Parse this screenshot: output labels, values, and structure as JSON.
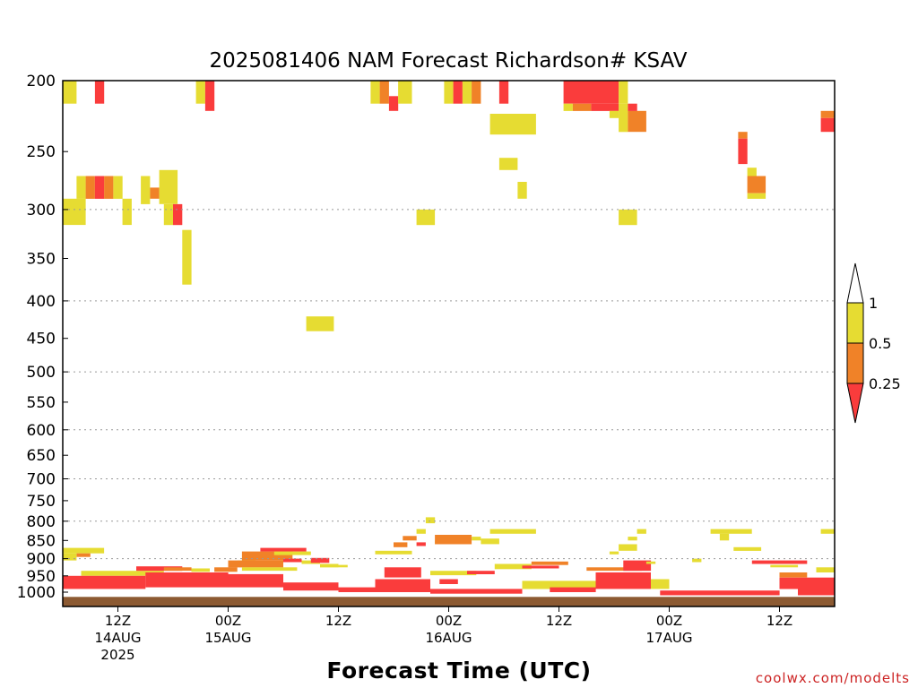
{
  "chart_data": {
    "type": "heatmap",
    "title": "2025081406 NAM Forecast Richardson# KSAV",
    "xlabel": "Forecast Time (UTC)",
    "ylabel": "",
    "credit": "coolwx.com/modelts",
    "x_unit": "hours after 2025-08-14 06Z",
    "xlim": [
      0,
      84
    ],
    "y_scale": "log-pressure",
    "ylim": [
      1000,
      200
    ],
    "y_ticks": [
      200,
      250,
      300,
      350,
      400,
      450,
      500,
      550,
      600,
      650,
      700,
      750,
      800,
      850,
      900,
      950,
      1000
    ],
    "grid_levels": [
      300,
      400,
      500,
      600,
      700,
      800,
      900
    ],
    "x_ticks": [
      {
        "hour": 6,
        "lines": [
          "12Z",
          "14AUG",
          "2025"
        ]
      },
      {
        "hour": 18,
        "lines": [
          "00Z",
          "15AUG"
        ]
      },
      {
        "hour": 30,
        "lines": [
          "12Z"
        ]
      },
      {
        "hour": 42,
        "lines": [
          "00Z",
          "16AUG"
        ]
      },
      {
        "hour": 54,
        "lines": [
          "12Z"
        ]
      },
      {
        "hour": 66,
        "lines": [
          "00Z",
          "17AUG"
        ]
      },
      {
        "hour": 78,
        "lines": [
          "12Z"
        ]
      }
    ],
    "legend": {
      "labels": [
        "1",
        "0.5",
        "0.25"
      ],
      "bins": [
        {
          "range": "> 1",
          "color": "#ffffff"
        },
        {
          "range": "0.5 - 1",
          "color": "#e6dc32"
        },
        {
          "range": "0.25 - 0.5",
          "color": "#f08228"
        },
        {
          "range": "< 0.25",
          "color": "#fa3c3c"
        }
      ]
    },
    "colors": {
      "yellow": "#e6dc32",
      "orange": "#f08228",
      "red": "#fa3c3c",
      "ground": "#8c5a32"
    },
    "ground_level": 1015,
    "cells": [
      {
        "t0": 0,
        "t1": 1.5,
        "p0": 200,
        "p1": 215,
        "c": "yellow"
      },
      {
        "t0": 3.5,
        "t1": 4.5,
        "p0": 200,
        "p1": 215,
        "c": "red"
      },
      {
        "t0": 14.5,
        "t1": 15.5,
        "p0": 200,
        "p1": 215,
        "c": "yellow"
      },
      {
        "t0": 15.5,
        "t1": 16.5,
        "p0": 200,
        "p1": 220,
        "c": "red"
      },
      {
        "t0": 1.5,
        "t1": 2.5,
        "p0": 270,
        "p1": 290,
        "c": "yellow"
      },
      {
        "t0": 2.5,
        "t1": 3.5,
        "p0": 270,
        "p1": 290,
        "c": "orange"
      },
      {
        "t0": 3.5,
        "t1": 4.5,
        "p0": 270,
        "p1": 290,
        "c": "red"
      },
      {
        "t0": 4.5,
        "t1": 5.5,
        "p0": 270,
        "p1": 290,
        "c": "orange"
      },
      {
        "t0": 5.5,
        "t1": 6.5,
        "p0": 270,
        "p1": 290,
        "c": "yellow"
      },
      {
        "t0": 0,
        "t1": 2.5,
        "p0": 290,
        "p1": 315,
        "c": "yellow"
      },
      {
        "t0": 6.5,
        "t1": 7.5,
        "p0": 290,
        "p1": 315,
        "c": "yellow"
      },
      {
        "t0": 8.5,
        "t1": 9.5,
        "p0": 270,
        "p1": 295,
        "c": "yellow"
      },
      {
        "t0": 9.5,
        "t1": 10.5,
        "p0": 280,
        "p1": 290,
        "c": "orange"
      },
      {
        "t0": 10.5,
        "t1": 12.5,
        "p0": 265,
        "p1": 295,
        "c": "yellow"
      },
      {
        "t0": 11,
        "t1": 12,
        "p0": 295,
        "p1": 315,
        "c": "yellow"
      },
      {
        "t0": 12,
        "t1": 13,
        "p0": 295,
        "p1": 315,
        "c": "red"
      },
      {
        "t0": 13,
        "t1": 14,
        "p0": 320,
        "p1": 380,
        "c": "yellow"
      },
      {
        "t0": 26.5,
        "t1": 29.5,
        "p0": 420,
        "p1": 440,
        "c": "yellow"
      },
      {
        "t0": 33.5,
        "t1": 34.5,
        "p0": 200,
        "p1": 215,
        "c": "yellow"
      },
      {
        "t0": 34.5,
        "t1": 35.5,
        "p0": 200,
        "p1": 215,
        "c": "orange"
      },
      {
        "t0": 35.5,
        "t1": 36.5,
        "p0": 210,
        "p1": 220,
        "c": "red"
      },
      {
        "t0": 36.5,
        "t1": 38,
        "p0": 200,
        "p1": 215,
        "c": "yellow"
      },
      {
        "t0": 38.5,
        "t1": 40.5,
        "p0": 300,
        "p1": 315,
        "c": "yellow"
      },
      {
        "t0": 41.5,
        "t1": 42.5,
        "p0": 200,
        "p1": 215,
        "c": "yellow"
      },
      {
        "t0": 42.5,
        "t1": 43.5,
        "p0": 200,
        "p1": 215,
        "c": "red"
      },
      {
        "t0": 43.5,
        "t1": 44.5,
        "p0": 200,
        "p1": 215,
        "c": "yellow"
      },
      {
        "t0": 44.5,
        "t1": 45.5,
        "p0": 200,
        "p1": 215,
        "c": "orange"
      },
      {
        "t0": 47.5,
        "t1": 48.5,
        "p0": 200,
        "p1": 215,
        "c": "red"
      },
      {
        "t0": 46.5,
        "t1": 51.5,
        "p0": 222,
        "p1": 237,
        "c": "yellow"
      },
      {
        "t0": 47.5,
        "t1": 49.5,
        "p0": 255,
        "p1": 265,
        "c": "yellow"
      },
      {
        "t0": 49.5,
        "t1": 50.5,
        "p0": 275,
        "p1": 290,
        "c": "yellow"
      },
      {
        "t0": 54.5,
        "t1": 60.5,
        "p0": 200,
        "p1": 215,
        "c": "red"
      },
      {
        "t0": 54.5,
        "t1": 55.5,
        "p0": 215,
        "p1": 220,
        "c": "yellow"
      },
      {
        "t0": 55.5,
        "t1": 57.5,
        "p0": 215,
        "p1": 220,
        "c": "orange"
      },
      {
        "t0": 57.5,
        "t1": 60.5,
        "p0": 215,
        "p1": 220,
        "c": "red"
      },
      {
        "t0": 60.5,
        "t1": 61.5,
        "p0": 200,
        "p1": 215,
        "c": "yellow"
      },
      {
        "t0": 59.5,
        "t1": 60.5,
        "p0": 220,
        "p1": 225,
        "c": "yellow"
      },
      {
        "t0": 60.5,
        "t1": 61.5,
        "p0": 215,
        "p1": 235,
        "c": "yellow"
      },
      {
        "t0": 61.5,
        "t1": 63.5,
        "p0": 220,
        "p1": 235,
        "c": "orange"
      },
      {
        "t0": 61.5,
        "t1": 62.5,
        "p0": 215,
        "p1": 220,
        "c": "red"
      },
      {
        "t0": 60.5,
        "t1": 62.5,
        "p0": 300,
        "p1": 315,
        "c": "yellow"
      },
      {
        "t0": 73.5,
        "t1": 74.5,
        "p0": 235,
        "p1": 240,
        "c": "orange"
      },
      {
        "t0": 73.5,
        "t1": 74.5,
        "p0": 240,
        "p1": 260,
        "c": "red"
      },
      {
        "t0": 74.5,
        "t1": 75.5,
        "p0": 263,
        "p1": 270,
        "c": "yellow"
      },
      {
        "t0": 74.5,
        "t1": 76.5,
        "p0": 270,
        "p1": 285,
        "c": "orange"
      },
      {
        "t0": 74.5,
        "t1": 76.5,
        "p0": 285,
        "p1": 290,
        "c": "yellow"
      },
      {
        "t0": 82.5,
        "t1": 84,
        "p0": 220,
        "p1": 225,
        "c": "orange"
      },
      {
        "t0": 82.5,
        "t1": 84,
        "p0": 225,
        "p1": 235,
        "c": "red"
      },
      {
        "t0": 0,
        "t1": 4.5,
        "p0": 870,
        "p1": 885,
        "c": "yellow"
      },
      {
        "t0": 1.5,
        "t1": 3,
        "p0": 885,
        "p1": 895,
        "c": "orange"
      },
      {
        "t0": 0,
        "t1": 1.5,
        "p0": 885,
        "p1": 905,
        "c": "yellow"
      },
      {
        "t0": 2,
        "t1": 11,
        "p0": 935,
        "p1": 950,
        "c": "yellow"
      },
      {
        "t0": 8,
        "t1": 13,
        "p0": 922,
        "p1": 935,
        "c": "red"
      },
      {
        "t0": 11,
        "t1": 14,
        "p0": 925,
        "p1": 935,
        "c": "orange"
      },
      {
        "t0": 14,
        "t1": 16,
        "p0": 928,
        "p1": 938,
        "c": "yellow"
      },
      {
        "t0": 16.5,
        "t1": 19,
        "p0": 925,
        "p1": 938,
        "c": "orange"
      },
      {
        "t0": 19,
        "t1": 21,
        "p0": 905,
        "p1": 915,
        "c": "yellow"
      },
      {
        "t0": 20,
        "t1": 22,
        "p0": 885,
        "p1": 900,
        "c": "orange"
      },
      {
        "t0": 21.5,
        "t1": 26.5,
        "p0": 870,
        "p1": 880,
        "c": "red"
      },
      {
        "t0": 19.5,
        "t1": 25,
        "p0": 880,
        "p1": 905,
        "c": "orange"
      },
      {
        "t0": 23,
        "t1": 27,
        "p0": 880,
        "p1": 890,
        "c": "yellow"
      },
      {
        "t0": 18,
        "t1": 24,
        "p0": 905,
        "p1": 925,
        "c": "orange"
      },
      {
        "t0": 19.5,
        "t1": 25.5,
        "p0": 925,
        "p1": 935,
        "c": "yellow"
      },
      {
        "t0": 24,
        "t1": 26,
        "p0": 900,
        "p1": 910,
        "c": "red"
      },
      {
        "t0": 26,
        "t1": 28,
        "p0": 905,
        "p1": 915,
        "c": "yellow"
      },
      {
        "t0": 27,
        "t1": 29,
        "p0": 898,
        "p1": 912,
        "c": "red"
      },
      {
        "t0": 28,
        "t1": 30,
        "p0": 915,
        "p1": 925,
        "c": "yellow"
      },
      {
        "t0": 30,
        "t1": 31,
        "p0": 918,
        "p1": 925,
        "c": "yellow"
      },
      {
        "t0": 0,
        "t1": 9,
        "p0": 950,
        "p1": 990,
        "c": "red"
      },
      {
        "t0": 9,
        "t1": 18,
        "p0": 940,
        "p1": 985,
        "c": "red"
      },
      {
        "t0": 18,
        "t1": 24,
        "p0": 945,
        "p1": 985,
        "c": "red"
      },
      {
        "t0": 24,
        "t1": 30,
        "p0": 970,
        "p1": 995,
        "c": "red"
      },
      {
        "t0": 30,
        "t1": 34,
        "p0": 985,
        "p1": 1000,
        "c": "red"
      },
      {
        "t0": 34,
        "t1": 40,
        "p0": 960,
        "p1": 1000,
        "c": "red"
      },
      {
        "t0": 35,
        "t1": 39,
        "p0": 925,
        "p1": 955,
        "c": "red"
      },
      {
        "t0": 36,
        "t1": 37.5,
        "p0": 855,
        "p1": 868,
        "c": "orange"
      },
      {
        "t0": 37,
        "t1": 38.5,
        "p0": 838,
        "p1": 850,
        "c": "orange"
      },
      {
        "t0": 38.5,
        "t1": 39.5,
        "p0": 855,
        "p1": 865,
        "c": "red"
      },
      {
        "t0": 38.5,
        "t1": 39.5,
        "p0": 820,
        "p1": 832,
        "c": "yellow"
      },
      {
        "t0": 39.5,
        "t1": 40.5,
        "p0": 790,
        "p1": 805,
        "c": "yellow"
      },
      {
        "t0": 34,
        "t1": 38,
        "p0": 878,
        "p1": 888,
        "c": "yellow"
      },
      {
        "t0": 40.5,
        "t1": 42.5,
        "p0": 850,
        "p1": 860,
        "c": "yellow"
      },
      {
        "t0": 40.5,
        "t1": 44.5,
        "p0": 835,
        "p1": 860,
        "c": "orange"
      },
      {
        "t0": 44.5,
        "t1": 45.5,
        "p0": 840,
        "p1": 850,
        "c": "yellow"
      },
      {
        "t0": 45.5,
        "t1": 47.5,
        "p0": 845,
        "p1": 860,
        "c": "yellow"
      },
      {
        "t0": 46.5,
        "t1": 51.5,
        "p0": 820,
        "p1": 832,
        "c": "yellow"
      },
      {
        "t0": 40,
        "t1": 45,
        "p0": 935,
        "p1": 948,
        "c": "yellow"
      },
      {
        "t0": 41,
        "t1": 43,
        "p0": 960,
        "p1": 975,
        "c": "red"
      },
      {
        "t0": 44,
        "t1": 47,
        "p0": 935,
        "p1": 945,
        "c": "red"
      },
      {
        "t0": 47,
        "t1": 51,
        "p0": 915,
        "p1": 930,
        "c": "yellow"
      },
      {
        "t0": 51,
        "t1": 55,
        "p0": 908,
        "p1": 918,
        "c": "orange"
      },
      {
        "t0": 50,
        "t1": 54,
        "p0": 920,
        "p1": 928,
        "c": "red"
      },
      {
        "t0": 40,
        "t1": 50,
        "p0": 990,
        "p1": 1005,
        "c": "red"
      },
      {
        "t0": 50,
        "t1": 58,
        "p0": 965,
        "p1": 990,
        "c": "yellow"
      },
      {
        "t0": 53,
        "t1": 58,
        "p0": 985,
        "p1": 1000,
        "c": "red"
      },
      {
        "t0": 57,
        "t1": 63,
        "p0": 925,
        "p1": 935,
        "c": "orange"
      },
      {
        "t0": 60.5,
        "t1": 62.5,
        "p0": 860,
        "p1": 878,
        "c": "yellow"
      },
      {
        "t0": 59.5,
        "t1": 60.5,
        "p0": 880,
        "p1": 888,
        "c": "yellow"
      },
      {
        "t0": 61.5,
        "t1": 62.5,
        "p0": 840,
        "p1": 850,
        "c": "yellow"
      },
      {
        "t0": 62.5,
        "t1": 63.5,
        "p0": 820,
        "p1": 832,
        "c": "yellow"
      },
      {
        "t0": 58,
        "t1": 64,
        "p0": 940,
        "p1": 990,
        "c": "red"
      },
      {
        "t0": 61,
        "t1": 64,
        "p0": 905,
        "p1": 935,
        "c": "red"
      },
      {
        "t0": 63.5,
        "t1": 64.5,
        "p0": 908,
        "p1": 915,
        "c": "yellow"
      },
      {
        "t0": 64,
        "t1": 66,
        "p0": 960,
        "p1": 990,
        "c": "yellow"
      },
      {
        "t0": 65,
        "t1": 78,
        "p0": 995,
        "p1": 1010,
        "c": "red"
      },
      {
        "t0": 68.5,
        "t1": 69.5,
        "p0": 900,
        "p1": 910,
        "c": "yellow"
      },
      {
        "t0": 70.5,
        "t1": 75,
        "p0": 820,
        "p1": 832,
        "c": "yellow"
      },
      {
        "t0": 71.5,
        "t1": 72.5,
        "p0": 832,
        "p1": 850,
        "c": "yellow"
      },
      {
        "t0": 73,
        "t1": 76,
        "p0": 868,
        "p1": 878,
        "c": "yellow"
      },
      {
        "t0": 75,
        "t1": 81,
        "p0": 905,
        "p1": 915,
        "c": "red"
      },
      {
        "t0": 77,
        "t1": 80,
        "p0": 918,
        "p1": 925,
        "c": "yellow"
      },
      {
        "t0": 78,
        "t1": 84,
        "p0": 955,
        "p1": 990,
        "c": "red"
      },
      {
        "t0": 78,
        "t1": 81,
        "p0": 940,
        "p1": 955,
        "c": "orange"
      },
      {
        "t0": 82.5,
        "t1": 84,
        "p0": 820,
        "p1": 832,
        "c": "yellow"
      },
      {
        "t0": 82,
        "t1": 84,
        "p0": 925,
        "p1": 940,
        "c": "yellow"
      },
      {
        "t0": 80,
        "t1": 84,
        "p0": 990,
        "p1": 1010,
        "c": "red"
      }
    ]
  }
}
